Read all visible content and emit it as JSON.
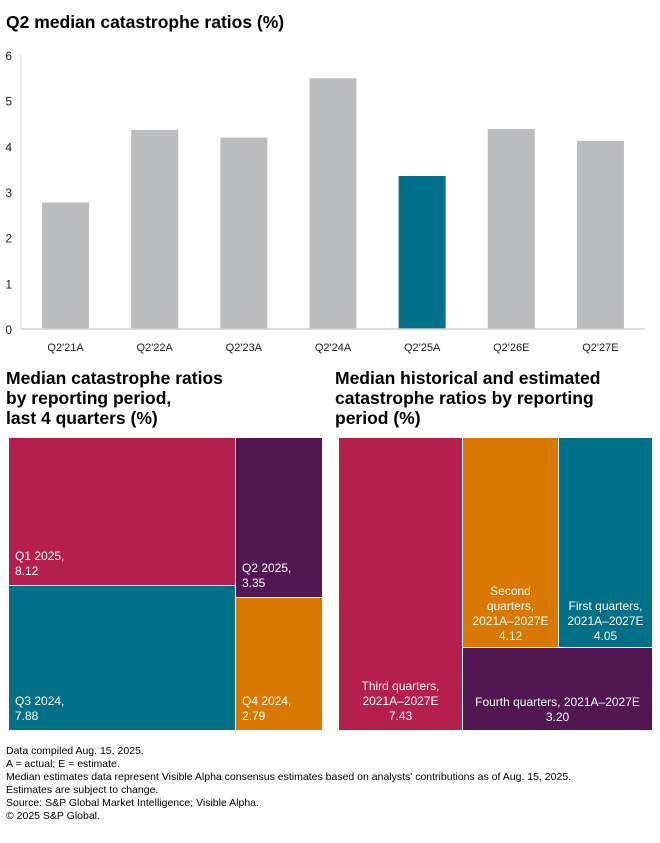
{
  "chart_data": [
    {
      "type": "bar",
      "title": "Q2 median catastrophe ratios (%)",
      "categories": [
        "Q2'21A",
        "Q2'22A",
        "Q2'23A",
        "Q2'24A",
        "Q2'25A",
        "Q2'26E",
        "Q2'27E"
      ],
      "values": [
        2.77,
        4.36,
        4.19,
        5.49,
        3.35,
        4.38,
        4.12
      ],
      "highlight_index": 4,
      "ylim": [
        0,
        6
      ],
      "yticks": [
        0,
        1,
        2,
        3,
        4,
        5,
        6
      ],
      "xlabel": "",
      "ylabel": "",
      "colors": {
        "default": "#bbbcbe",
        "highlight": "#006f88"
      },
      "grid": false
    },
    {
      "type": "treemap",
      "title": "Median catastrophe ratios by reporting period, last 4 quarters (%)",
      "title_lines": [
        "Median catastrophe ratios",
        "by reporting period,",
        "last 4 quarters (%)"
      ],
      "items": [
        {
          "label": "Q1 2025,",
          "value": "8.12",
          "color": "#b51f4e"
        },
        {
          "label": "Q3 2024,",
          "value": "7.88",
          "color": "#006f88"
        },
        {
          "label": "Q2 2025,",
          "value": "3.35",
          "color": "#521653"
        },
        {
          "label": "Q4 2024,",
          "value": "2.79",
          "color": "#d97800"
        }
      ]
    },
    {
      "type": "treemap",
      "title": "Median historical and estimated catastrophe ratios by reporting period (%)",
      "title_lines": [
        "Median historical and estimated",
        "catastrophe ratios by reporting",
        "period (%)"
      ],
      "items": [
        {
          "label": "Third quarters,",
          "label2": "2021A–2027E",
          "value": "7.43",
          "color": "#b51f4e"
        },
        {
          "label": "Second",
          "label1b": "quarters,",
          "label2": "2021A–2027E",
          "value": "4.12",
          "color": "#d97800"
        },
        {
          "label": "First quarters,",
          "label2": "2021A–2027E",
          "value": "4.05",
          "color": "#006f88"
        },
        {
          "label": "Fourth quarters, 2021A–2027E",
          "value": "3.20",
          "color": "#521653"
        }
      ]
    }
  ],
  "footnotes": [
    "Data compiled Aug. 15, 2025.",
    "A = actual; E = estimate.",
    "Median estimates data represent Visible Alpha consensus estimates based on analysts' contributions as of Aug. 15, 2025.",
    "Estimates are subject to change.",
    "Source: S&P Global Market Intelligence; Visible Alpha.",
    "© 2025 S&P Global."
  ]
}
